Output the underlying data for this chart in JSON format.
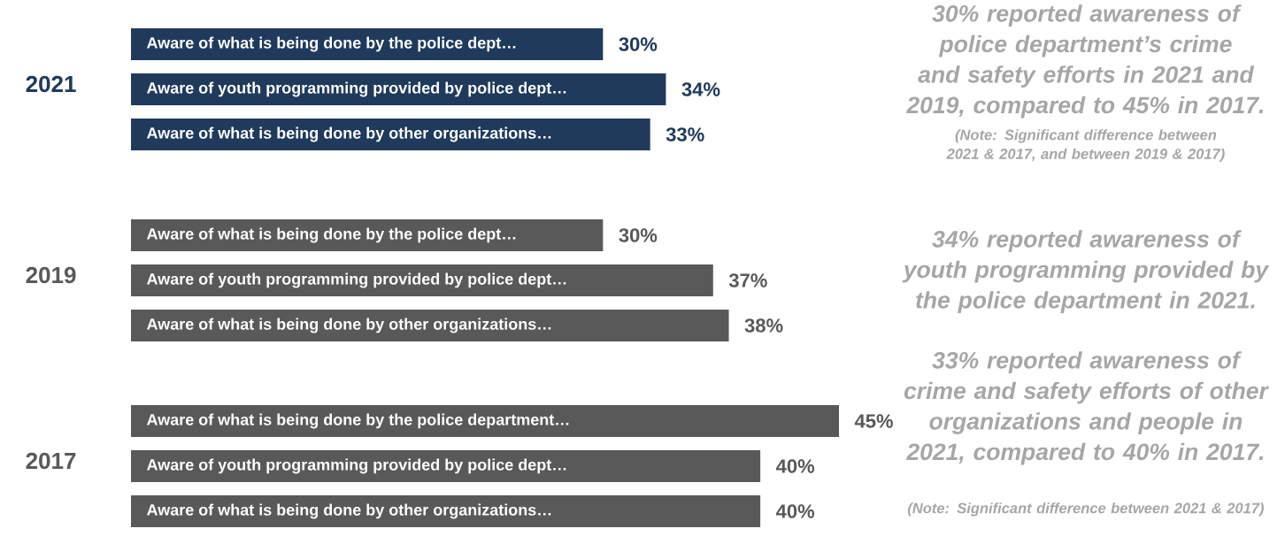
{
  "chart_data": [
    {
      "type": "bar",
      "orientation": "horizontal",
      "title": "2021",
      "color": "#203a5c",
      "categories": [
        "Aware of what is being done by the police dept…",
        "Aware of youth programming provided by police dept…",
        "Aware of what is being done by other organizations…"
      ],
      "values": [
        30,
        34,
        33
      ],
      "value_labels": [
        "30%",
        "34%",
        "33%"
      ],
      "annotations": [
        "30% reported awareness of police department’s crime and safety efforts in 2021 and 2019, compared to 45% in 2017.",
        "(Note: Significant difference between 2021 & 2017, and between 2019 & 2017)"
      ]
    },
    {
      "type": "bar",
      "orientation": "horizontal",
      "title": "2019",
      "color": "#595959",
      "categories": [
        "Aware of what is being done by the police dept…",
        "Aware of youth programming provided by police dept…",
        "Aware of what is being done by other organizations…"
      ],
      "values": [
        30,
        37,
        38
      ],
      "value_labels": [
        "30%",
        "37%",
        "38%"
      ],
      "annotations": [
        "34% reported awareness of youth programming provided by the police department in 2021."
      ]
    },
    {
      "type": "bar",
      "orientation": "horizontal",
      "title": "2017",
      "color": "#595959",
      "categories": [
        "Aware of what is being done by the police department…",
        "Aware of youth programming provided by police dept…",
        "Aware of what is being done by other organizations…"
      ],
      "values": [
        45,
        40,
        40
      ],
      "value_labels": [
        "45%",
        "40%",
        "40%"
      ],
      "annotations": [
        "33% reported awareness of crime and safety efforts of other organizations and people in 2021, compared to 40% in 2017.",
        "(Note: Significant difference between 2021 & 2017)"
      ]
    }
  ]
}
